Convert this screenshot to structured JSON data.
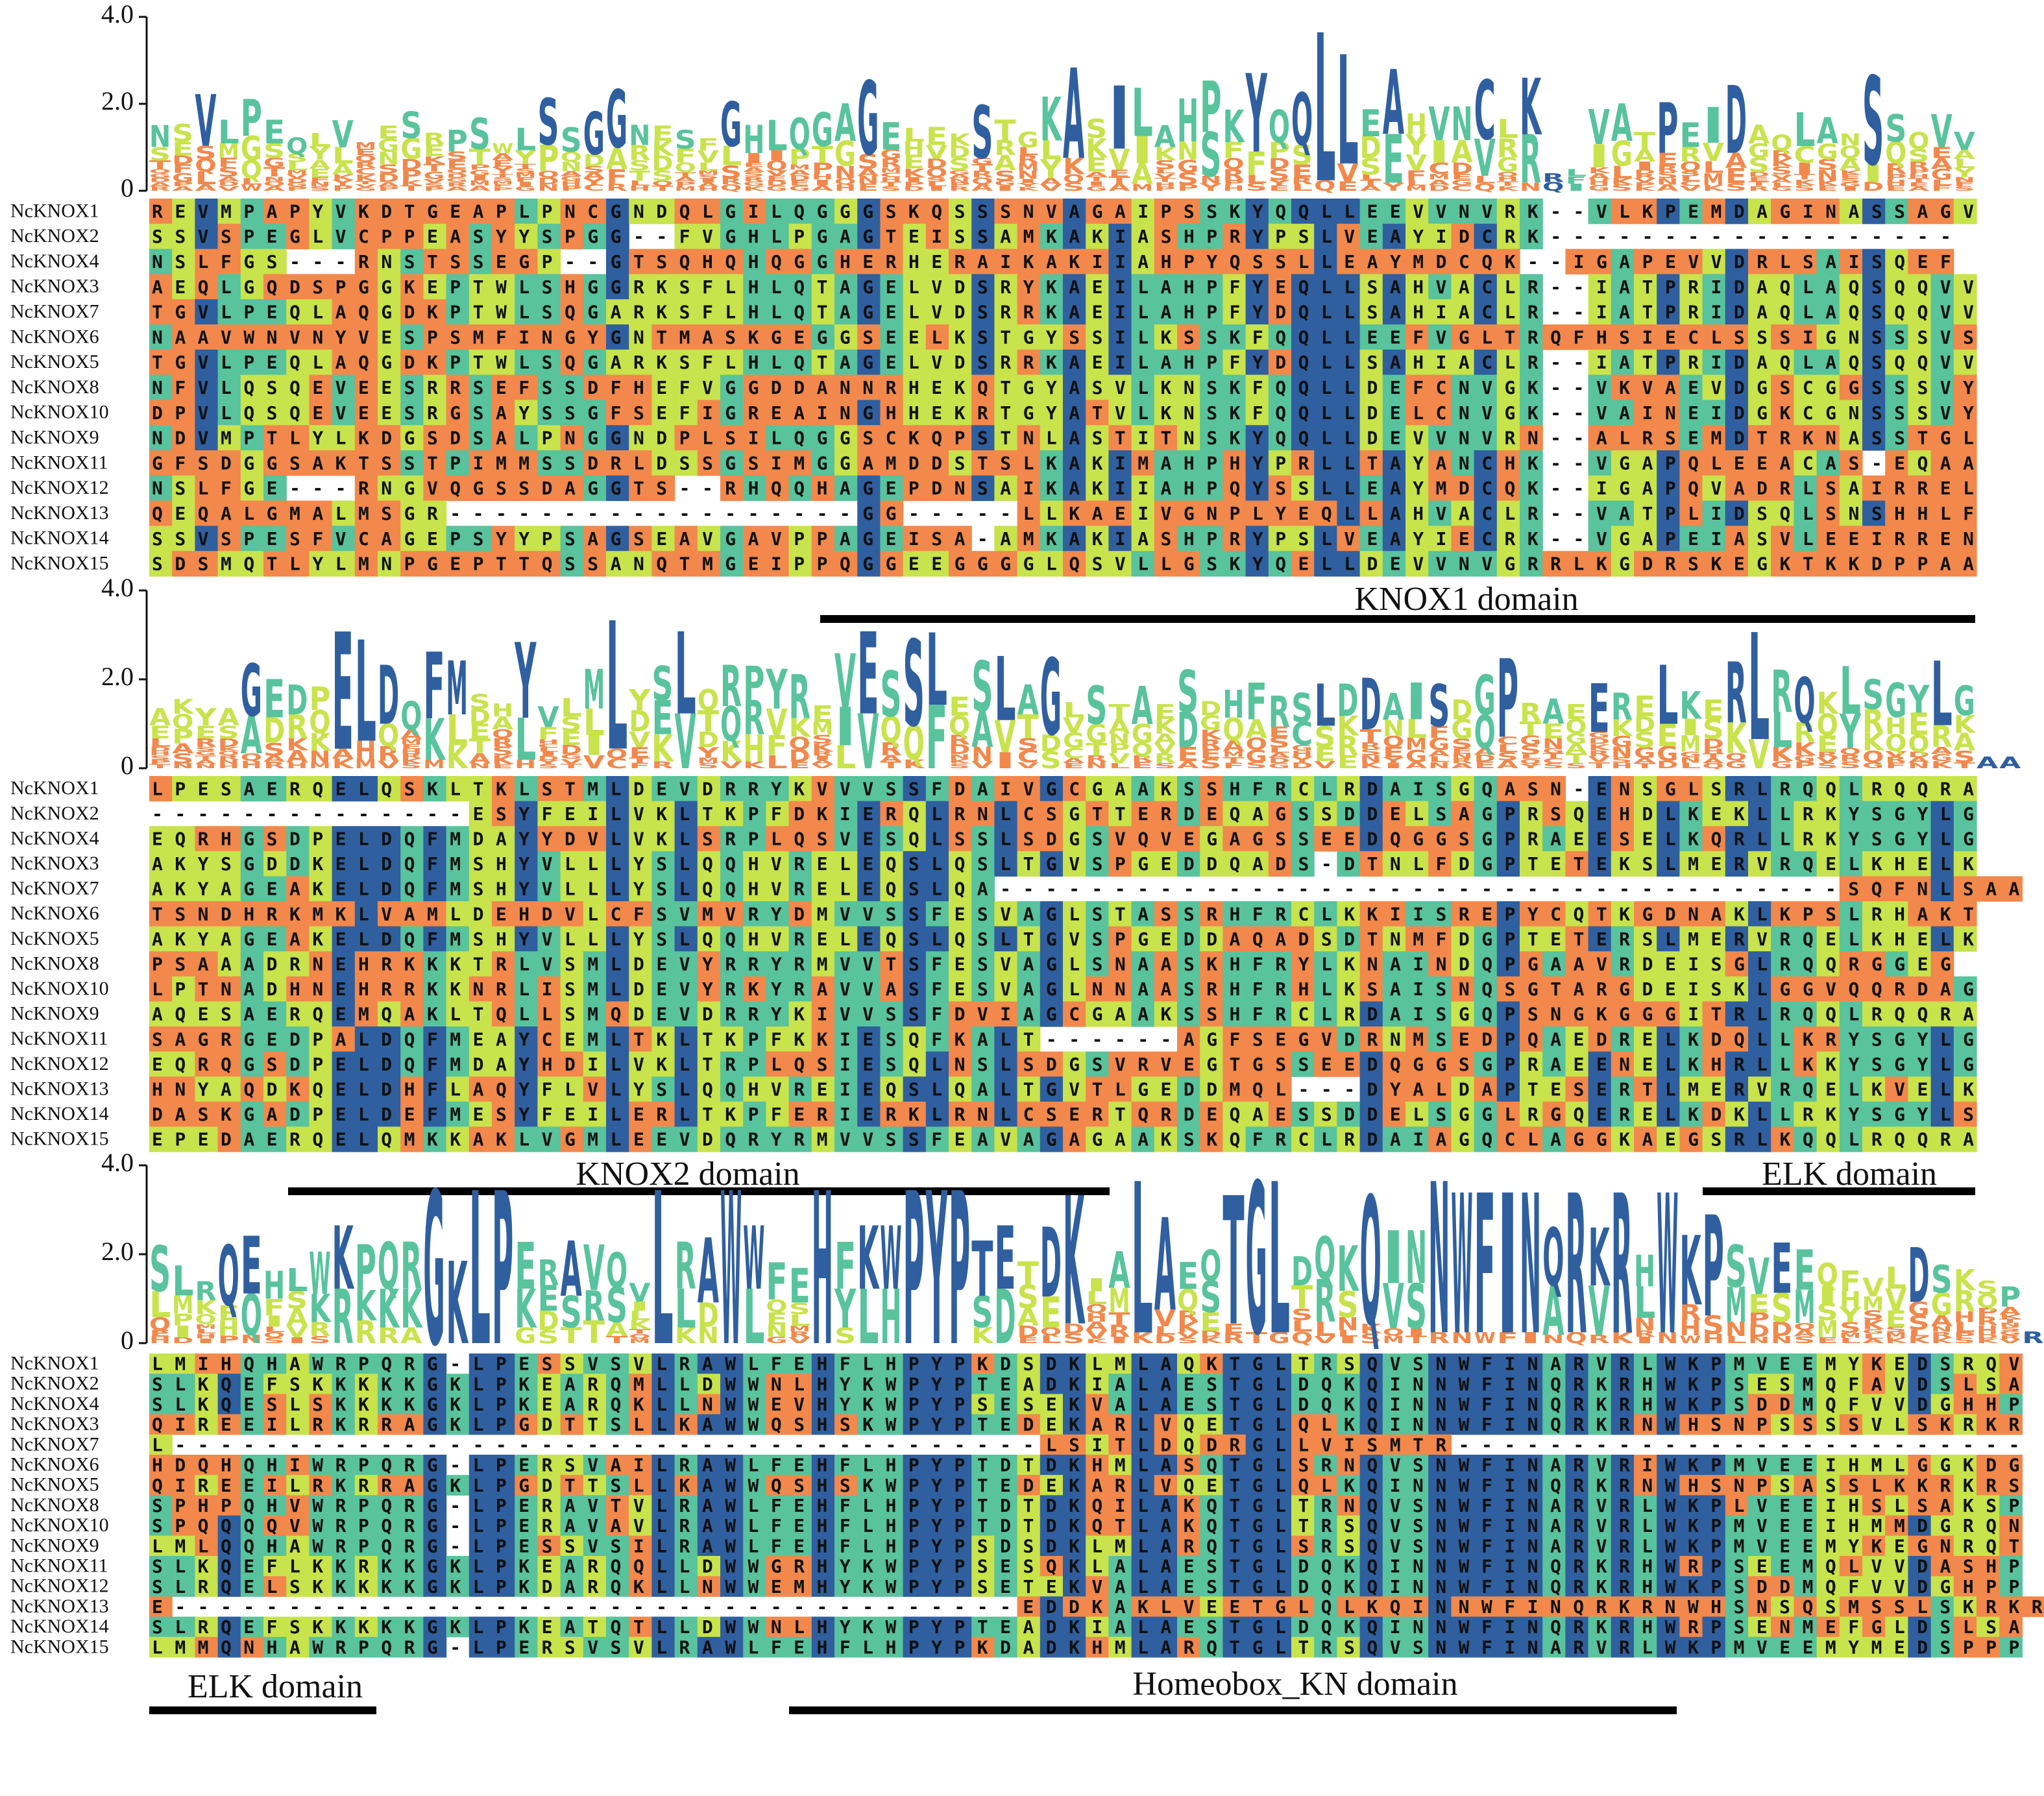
{
  "logo_axis_ticks": [
    {
      "value": 4,
      "label": "4.0"
    },
    {
      "value": 2,
      "label": "2.0"
    },
    0
  ],
  "blocks": [
    {
      "rows": [
        {
          "name": "NcKNOX1",
          "sequence": "REVMPAPYVKDTGEAPLPNCGNDQLGILQGGGSKQSSSNVAGAIPSSKYQQLLEEVVNVRK--VLKPEMDAGINASSAGV"
        },
        {
          "name": "NcKNOX2",
          "sequence": "SSVSPEGLVCPPEASYYSPGG--FVGHLPGAGTEISSAMKAKIASHPRYPSLVEAYIDCRK------------------"
        },
        {
          "name": "NcKNOX4",
          "sequence": "NSLFGS---RNSTSSEGP--GTSQHQHQGGHERHERAIKAKIIAHPYQSSLLEAYMDCQK--IGAPEVVDRLSAISQEF"
        },
        {
          "name": "NcKNOX3",
          "sequence": "AEQLGQDSPGGKEPTWLSHGGRKSFLHLQTAGELVDSRYKAEILAHPFYEQLLSAHVACLR--IATPRIDAQLAQSQQVV"
        },
        {
          "name": "NcKNOX7",
          "sequence": "TGVLPEQLAQGDKPTWLSQGARKSFLHLQTAGELVDSRRKAEILAHPFYDQLLSAHIACLR--IATPRIDAQLAQSQQVV"
        },
        {
          "name": "NcKNOX6",
          "sequence": "NAAVWNVNYVESPSMFINGYGNTMASKGEGGSEELKSTGYSSILKSSKFQQLLEEFVGLTRQFHSIECLSSSIGNSSSVS"
        },
        {
          "name": "NcKNOX5",
          "sequence": "TGVLPEQLAQGDKPTWLSQGARKSFLHLQTAGELVDSRRKAEILAHPFYDQLLSAHIACLR--IATPRIDAQLAQSQQVV"
        },
        {
          "name": "NcKNOX8",
          "sequence": "NFVLQSQEVEESRRSEFSSDFHEFVGGDDANNRHEKQTGYASVLKNSKFQQLLDEFCNVGK--VKVAEVDGSCGGSSSVY"
        },
        {
          "name": "NcKNOX10",
          "sequence": "DPVLQSQEVEESRGSAYSSGFSEFIGREAINGHHEKRTGYATVLKNSKFQQLLDELCNVGK--VAINEIDGKCGNSSSVY"
        },
        {
          "name": "NcKNOX9",
          "sequence": "NDVMPTLYLKDGSDSALPNGGNDPLSILQGGSCKQPSTNLASTITNSKYQQLLDEVVNVRN--ALRSEMDTRKNASSTGL"
        },
        {
          "name": "NcKNOX11",
          "sequence": "GFSDGGSAKTSSTPIMMSSDRLDSSGSIMGGAMDDSTSLKAKIMAHPHYPRLLTAYANCHK--VGAPQLEEACAS-EQAA"
        },
        {
          "name": "NcKNOX12",
          "sequence": "NSLFGE---RNGVQGSSDAGGTS--RHQQHAGEPDNSAIKAKIIAHPQYSSLLEAYMDCQK--IGAPQVADRLSAIRREL"
        },
        {
          "name": "NcKNOX13",
          "sequence": "QEQALGMALMSGR------------------GG-----LLKAEIVGNPLYEQLLAHVACLR--VATPLIDSQLSNSHHLF"
        },
        {
          "name": "NcKNOX14",
          "sequence": "SSVSPESFVCAGEPSYYPSAGSEAVGAVPPAGEISA-AMKAKIASHPRYPSLVEAYIECRK--VGAPEIASVLEEIRREN"
        },
        {
          "name": "NcKNOX15",
          "sequence": "SDSMQTLYLMNPGEPTTQSSANQTMGEIPPQGGEEGGGGLQSVLLGSKYQELLDEVVNVGRRLKGDRSKEGKTKKDPPAA"
        }
      ],
      "annotations": [
        {
          "label": "KNOX1 domain"
        }
      ]
    },
    {
      "rows": [
        {
          "name": "NcKNOX1",
          "sequence": "LPESAERQELQSKLTKLSTMLDEVDRRYKVVVSSFDAIVGCGAAKSSHFRCLRDAISGQASN-ENSGLSRLRQQLRQQRA"
        },
        {
          "name": "NcKNOX2",
          "sequence": "--------------ESYFEILVKLTKPFDKIERQLRNLCSGTTERDEQAGSSDDELSAGPRSQEHDLKEKLLRKYSGYLG"
        },
        {
          "name": "NcKNOX4",
          "sequence": "EQRHGSDPELDQFMDAYYDVLVKLSRPLQSVESQLSSLSDGSVQVEGAGSSEEDQGGSGPRAEESELKQRLLRKYSGYLG"
        },
        {
          "name": "NcKNOX3",
          "sequence": "AKYSGDDKELDQFMSHYVLLLYSLQQHVRELEQSLQSLTGVSPGEDDQADS-DTNLFDGPTETEKSLMERVRQELKHELK"
        },
        {
          "name": "NcKNOX7",
          "sequence": "AKYAGEAKELDQFMSHYVLLLYSLQQHVRELEQSLQA-------------------------------------SQFNLSAA"
        },
        {
          "name": "NcKNOX6",
          "sequence": "TSNDHRKMKLVAMLDEHDVLCFSVMVRYDMVVSSFESVAGLSTASSRHFRCLKKIISREPYCQTKGDNAKLKPSLRHAKT"
        },
        {
          "name": "NcKNOX5",
          "sequence": "AKYAGEAKELDQFMSHYVLLLYSLQQHVRELEQSLQSLTGVSPGEDDAQADSDTNMFDGPTETERSLMERVRQELKHELK"
        },
        {
          "name": "NcKNOX8",
          "sequence": "PSAAADRNEHRKKKTRLVSMLDEVYRRYRMVVTSFESVAGLSNAASKHFRYLKNAINDQPGAAVRDEISGLRQQRGGEG"
        },
        {
          "name": "NcKNOX10",
          "sequence": "LPTNADHNEHRRKKNRLISMLDEVYRKYRAVVASFESVAGLNNAASRHFRHLKSAISNQSGTARGDEISKLGGVQQRDAG"
        },
        {
          "name": "NcKNOX9",
          "sequence": "AQESAERQEMQAKLTQLLSMQDEVDRRYKIVVSSFDVIAGCGAAKSSHFRCLRDAISGQPSNGKGGGITRLRQQLRQQRA"
        },
        {
          "name": "NcKNOX11",
          "sequence": "SAGRGEDPALDQFMEAYCEMLTKLTKPFKKIESQFKALT------AGFSEGVDRNMSEDPQAEDRELKDQLLKRYSGYLG"
        },
        {
          "name": "NcKNOX12",
          "sequence": "EQRQGSDPELDQFMDAYHDILVKLTRPLQSIESQLNSLSDGSVRVEGTGSSEEDQGGSGPRAEENELKHRLLKKYSGYLG"
        },
        {
          "name": "NcKNOX13",
          "sequence": "HNYAQDKQELDHFLAQYFLVLYSLQQHVREIEQSLQALTGVTLGEDDMQL---DYALDAPTESERTLMERVRQELKVELK"
        },
        {
          "name": "NcKNOX14",
          "sequence": "DASKGADPELDEFMESYFEILERLTKPFERIERKLRNLCSERTQRDEQAESSDDELSGGLRGQERELKDKLLRKYSGYLS"
        },
        {
          "name": "NcKNOX15",
          "sequence": "EPEDAERQELQMKKAKLVGMLEEVDQRYRMVVSSFEAVAGAGAAKSKQFRCLRDAIAGQCLAGGKAEGSRLKQQLRQQRA"
        }
      ],
      "annotations": [
        {
          "label": "KNOX2 domain"
        },
        {
          "label": "ELK domain"
        }
      ]
    },
    {
      "rows": [
        {
          "name": "NcKNOX1",
          "sequence": "LMIHQHAWRPQRG-LPESSVSVLRAWLFEHFLHPYPKDSDKLMLAQKTGLTRSQVSNWFINARVRLWKPMVEEMYKEDSRQV"
        },
        {
          "name": "NcKNOX2",
          "sequence": "SLKQEFSKKKKKGKLPKEARQMLLDWWNLHYKWPYPTEADKIALAESTGLDQKQINNWFINQRKRHWKPSESMQFAVDSLSA"
        },
        {
          "name": "NcKNOX4",
          "sequence": "SLKQESLSKKKKGKLPKEARQKLLNWWEVHYKWPYPSESEKVALAESTGLDQKQINNWFINQRKRHWKPSDDMQFVVDGHHP"
        },
        {
          "name": "NcKNOX3",
          "sequence": "QIREEILRKRRAGKLPGDTTSLLKAWWQSHSKWPYPTEDEKARLVQETGLQLKQINNWFINQRKRNWHSNPSSSSVLSKRKR"
        },
        {
          "name": "NcKNOX7",
          "sequence": "L--------------------------------------LSITLDQDRGLLVISMTR-------------------------"
        },
        {
          "name": "NcKNOX6",
          "sequence": "HDQHQHIWRPQRG-LPERSVAILRAWLFEHFLHPYPTDTDKHMLASQTGLSRNQVSNWFINARVRIWKPMVEEIHMLGGKDG"
        },
        {
          "name": "NcKNOX5",
          "sequence": "QIREEILRKRRAGKLPGDTTSLLKAWWQSHSKWPYPTEDEKARLVQETGLQLKQINNWFINQRKRNWHSNPSASSLKKRKRS"
        },
        {
          "name": "NcKNOX8",
          "sequence": "SPHPQHVWRPQRG-LPERAVTVLRAWLFEHFLHPYPTDTDKQILAKQTGLTRNQVSNWFINARVRLWKPLVEEIHSLSAKSP"
        },
        {
          "name": "NcKNOX10",
          "sequence": "SPQQQQVWRPQRG-LPERAVAVLRAWLFEHFLHPYPTDTDKQTLAKQTGLTRSQVSNWFINARVRLWKPMVEEIHMMDGRQN"
        },
        {
          "name": "NcKNOX9",
          "sequence": "LMLQQHAWRPQRG-LPESSVSILRAWLFEHFLHPYPSDSDKLMLARQTGLSRSQVSNWFINARVRLWKPMVEEMYKEGNRQT"
        },
        {
          "name": "NcKNOX11",
          "sequence": "SLKQEFLKKRKKGKLPKEARQQLLDWWGRHYKWPYPSESQKLALAESTGLDQKQINNWFINQRKRHWRPSEEMQLVVDASHP"
        },
        {
          "name": "NcKNOX12",
          "sequence": "SLRQELSKKKKKGKLPKDARQKLLNWWEMHYKWPYPSETEKVALAESTGLDQKQINNWFINQRKRHWKPSDDMQFVVDGHPP"
        },
        {
          "name": "NcKNOX13",
          "sequence": "E-------------------------------------EDDKAKLVEETGLQLKQINNWFINQRKRNWHSNSQSMSSLSKRKR"
        },
        {
          "name": "NcKNOX14",
          "sequence": "SLRQEFSKKKKKGKLPKEATQTLLDWWNLHYKWPYPTEADKIALAESTGLDQKQINNWFINQRKRHWRPSENMEFGLDSLSA"
        },
        {
          "name": "NcKNOX15",
          "sequence": "LMMQNHAWRPQRG-LPERSVSVLRAWLFEHFLHPYPKDADKHMLARQTGLTRSQVSNWFINARVRLWKPMVEEMYMEDSPPP"
        }
      ],
      "annotations": [
        {
          "label": "ELK domain"
        },
        {
          "label": "Homeobox_KN domain"
        }
      ]
    }
  ]
}
